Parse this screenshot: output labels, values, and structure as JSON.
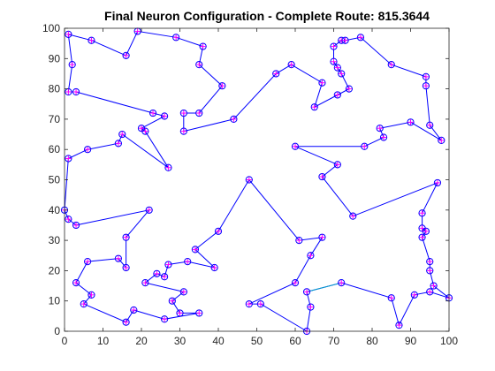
{
  "chart_data": {
    "type": "line",
    "title": "Final Neuron Configuration - Complete Route: 815.3644",
    "xlabel": "",
    "ylabel": "",
    "xlim": [
      0,
      100
    ],
    "ylim": [
      0,
      100
    ],
    "xticks": [
      0,
      10,
      20,
      30,
      40,
      50,
      60,
      70,
      80,
      90,
      100
    ],
    "yticks": [
      0,
      10,
      20,
      30,
      40,
      50,
      60,
      70,
      80,
      90,
      100
    ],
    "grid": false,
    "colors": {
      "route": "#0000FF",
      "closing_segment": "#00A0C8",
      "marker_fill": "#FF00FF",
      "marker_edge": "#0000FF"
    },
    "route": [
      [
        1,
        98
      ],
      [
        7,
        96
      ],
      [
        16,
        91
      ],
      [
        19,
        99
      ],
      [
        29,
        97
      ],
      [
        36,
        94
      ],
      [
        35,
        88
      ],
      [
        41,
        81
      ],
      [
        35,
        72
      ],
      [
        31,
        72
      ],
      [
        31,
        66
      ],
      [
        44,
        70
      ],
      [
        55,
        85
      ],
      [
        59,
        88
      ],
      [
        67,
        82
      ],
      [
        65,
        74
      ],
      [
        71,
        78
      ],
      [
        74,
        80
      ],
      [
        72,
        85
      ],
      [
        71,
        87
      ],
      [
        70,
        89
      ],
      [
        70,
        94
      ],
      [
        72,
        96
      ],
      [
        73,
        96
      ],
      [
        77,
        97
      ],
      [
        85,
        88
      ],
      [
        94,
        84
      ],
      [
        94,
        81
      ],
      [
        95,
        68
      ],
      [
        98,
        63
      ],
      [
        90,
        69
      ],
      [
        82,
        67
      ],
      [
        83,
        64
      ],
      [
        78,
        61
      ],
      [
        60,
        61
      ],
      [
        71,
        55
      ],
      [
        67,
        51
      ],
      [
        75,
        38
      ],
      [
        97,
        49
      ],
      [
        93,
        39
      ],
      [
        93,
        34
      ],
      [
        94,
        33
      ],
      [
        93,
        31
      ],
      [
        95,
        23
      ],
      [
        95,
        20
      ],
      [
        96,
        15
      ],
      [
        100,
        11
      ],
      [
        95,
        13
      ],
      [
        91,
        12
      ],
      [
        87,
        2
      ],
      [
        85,
        11
      ],
      [
        72,
        16
      ],
      [
        63,
        13
      ],
      [
        64,
        8
      ],
      [
        63,
        0
      ],
      [
        51,
        9
      ],
      [
        48,
        9
      ],
      [
        60,
        16
      ],
      [
        64,
        25
      ],
      [
        67,
        31
      ],
      [
        61,
        30
      ],
      [
        48,
        50
      ],
      [
        40,
        33
      ],
      [
        34,
        27
      ],
      [
        39,
        21
      ],
      [
        32,
        23
      ],
      [
        27,
        22
      ],
      [
        26,
        18
      ],
      [
        24,
        19
      ],
      [
        21,
        16
      ],
      [
        31,
        13
      ],
      [
        28,
        10
      ],
      [
        30,
        6
      ],
      [
        35,
        6
      ],
      [
        26,
        4
      ],
      [
        18,
        7
      ],
      [
        16,
        3
      ],
      [
        5,
        9
      ],
      [
        7,
        12
      ],
      [
        3,
        16
      ],
      [
        6,
        23
      ],
      [
        14,
        24
      ],
      [
        16,
        21
      ],
      [
        16,
        31
      ],
      [
        22,
        40
      ],
      [
        3,
        35
      ],
      [
        1,
        37
      ],
      [
        0,
        40
      ],
      [
        1,
        57
      ],
      [
        6,
        60
      ],
      [
        14,
        62
      ],
      [
        15,
        65
      ],
      [
        27,
        54
      ],
      [
        21,
        66
      ],
      [
        20,
        67
      ],
      [
        26,
        71
      ],
      [
        23,
        72
      ],
      [
        3,
        79
      ],
      [
        1,
        79
      ],
      [
        2,
        88
      ],
      [
        1,
        98
      ]
    ],
    "closing_segment": [
      [
        63,
        13
      ],
      [
        72,
        16
      ]
    ]
  }
}
